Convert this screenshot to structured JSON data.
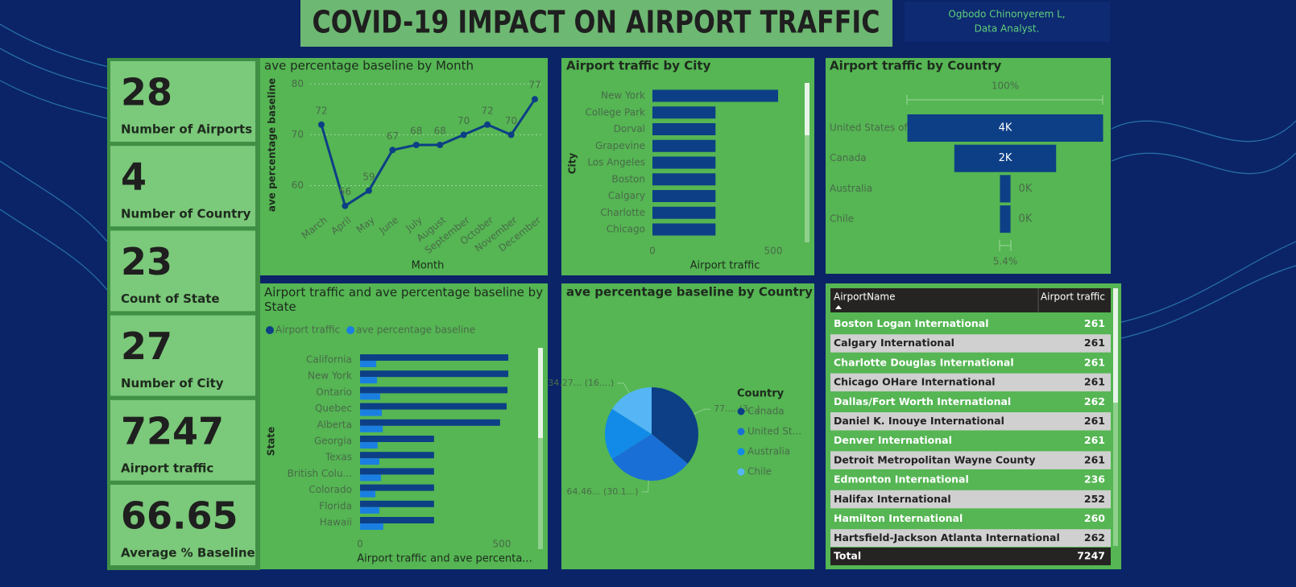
{
  "header": {
    "title": "COVID-19 IMPACT ON AIRPORT TRAFFIC",
    "author": "Ogbodo Chinonyerem L,",
    "role": "Data Analyst."
  },
  "cards": [
    {
      "value": 28,
      "label": "Number of Airports"
    },
    {
      "value": 4,
      "label": "Number of Country"
    },
    {
      "value": 23,
      "label": "Count of State"
    },
    {
      "value": 27,
      "label": "Number of City"
    },
    {
      "value": 7247,
      "label": "Airport traffic"
    },
    {
      "value": 66.65,
      "label": "Average % Baseline"
    }
  ],
  "chart_data": [
    {
      "type": "line",
      "title": "ave percentage baseline by Month",
      "x_label": "Month",
      "y_label": "ave percentage baseline",
      "categories": [
        "March",
        "April",
        "May",
        "June",
        "July",
        "August",
        "September",
        "October",
        "November",
        "December"
      ],
      "values": [
        72,
        56,
        59,
        67,
        68,
        68,
        70,
        72,
        70,
        77
      ],
      "color": "#0d3f86",
      "ylim": [
        55,
        81
      ],
      "yticks": [
        60,
        70,
        80
      ],
      "grid": true
    },
    {
      "type": "hbar",
      "title": "Airport traffic by City",
      "x_label": "Airport traffic",
      "y_label": "City",
      "categories": [
        "New York",
        "College Park",
        "Dorval",
        "Grapevine",
        "Los Angeles",
        "Boston",
        "Calgary",
        "Charlotte",
        "Chicago"
      ],
      "values": [
        520,
        261,
        261,
        261,
        261,
        261,
        261,
        261,
        261
      ],
      "color": "#0d3f86",
      "xlim": [
        0,
        600
      ],
      "xticks": [
        0,
        500
      ]
    },
    {
      "type": "funnel",
      "title": "Airport traffic by Country",
      "top_label": "100%",
      "bottom_label": "5.4%",
      "categories": [
        "United States of ...",
        "Canada",
        "Australia",
        "Chile"
      ],
      "values": [
        4450,
        2315,
        240,
        240
      ],
      "value_labels": [
        "4K",
        "2K",
        "0K",
        "0K"
      ],
      "color": "#0d3f86"
    },
    {
      "type": "grouped-hbar",
      "title": "Airport traffic and ave percentage baseline by State",
      "x_label": "Airport traffic and ave percenta...",
      "y_label": "State",
      "categories": [
        "California",
        "New York",
        "Ontario",
        "Quebec",
        "Alberta",
        "Georgia",
        "Texas",
        "British Colu...",
        "Colorado",
        "Florida",
        "Hawaii"
      ],
      "series": [
        {
          "name": "Airport traffic",
          "color": "#0d3f86",
          "values": [
            523,
            523,
            520,
            517,
            494,
            261,
            261,
            261,
            261,
            261,
            261
          ]
        },
        {
          "name": "ave percentage baseline",
          "color": "#1a7fe0",
          "values": [
            57,
            60,
            71,
            77,
            80,
            62,
            68,
            74,
            54,
            68,
            82
          ]
        }
      ],
      "xlim": [
        0,
        620
      ],
      "xticks": [
        0,
        500
      ]
    },
    {
      "type": "pie",
      "title": "ave percentage baseline by Country",
      "legend_title": "Country",
      "categories": [
        "Canada",
        "United St...",
        "Australia",
        "Chile"
      ],
      "values": [
        77,
        64.46,
        38.5,
        34.27
      ],
      "value_labels": [
        "77.... (3...)",
        "64.46... (30.1...)",
        null,
        "34.27... (16....)"
      ],
      "colors": [
        "#0d3f86",
        "#1a6fd6",
        "#128be8",
        "#55b5f5"
      ]
    }
  ],
  "table": {
    "columns": [
      "AirportName",
      "Airport traffic"
    ],
    "rows": [
      [
        "Boston Logan International",
        261
      ],
      [
        "Calgary International",
        261
      ],
      [
        "Charlotte Douglas International",
        261
      ],
      [
        "Chicago OHare International",
        261
      ],
      [
        "Dallas/Fort Worth International",
        262
      ],
      [
        "Daniel K. Inouye International",
        261
      ],
      [
        "Denver International",
        261
      ],
      [
        "Detroit Metropolitan Wayne County",
        261
      ],
      [
        "Edmonton International",
        236
      ],
      [
        "Halifax International",
        252
      ],
      [
        "Hamilton International",
        260
      ],
      [
        "Hartsfield-Jackson Atlanta International",
        262
      ]
    ],
    "total": [
      "Total",
      7247
    ]
  }
}
